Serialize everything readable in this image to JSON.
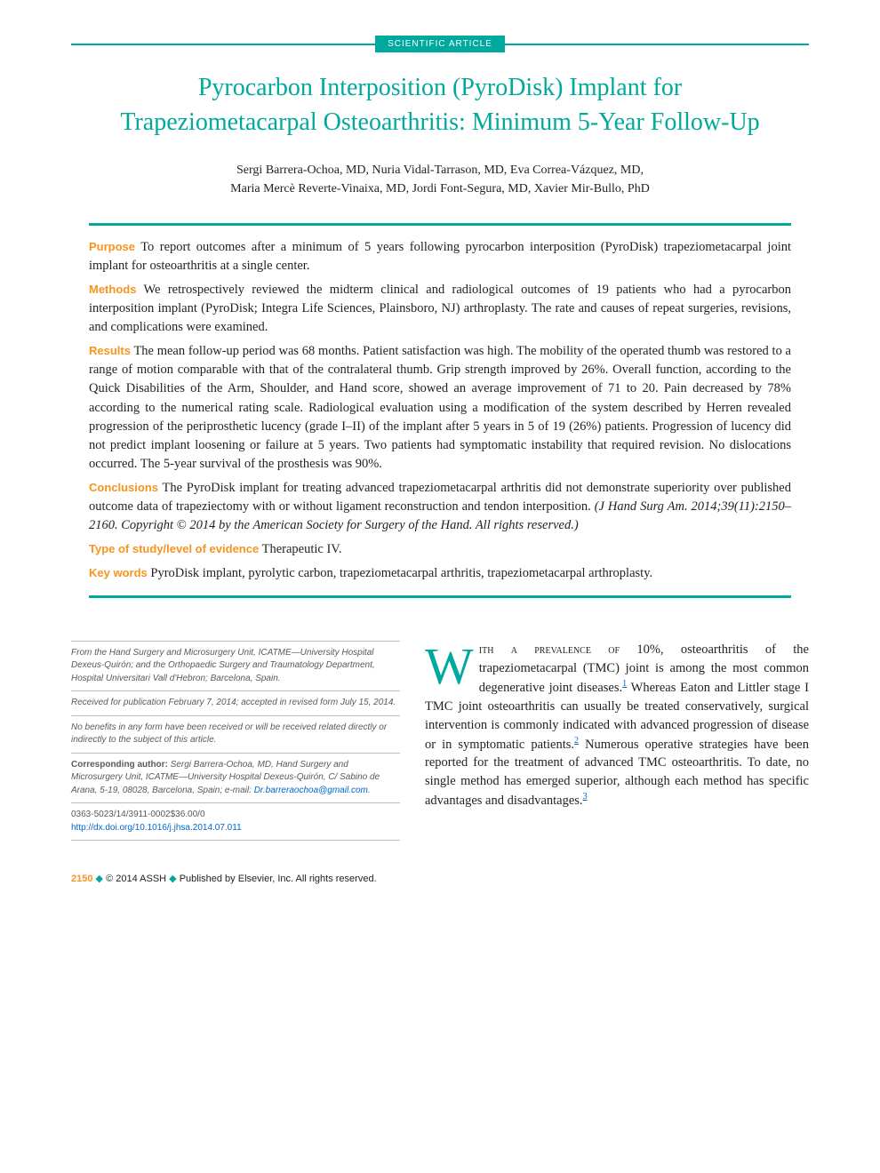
{
  "header": {
    "badge": "SCIENTIFIC ARTICLE",
    "rule_color": "#00a99d"
  },
  "title": "Pyrocarbon Interposition (PyroDisk) Implant for Trapeziometacarpal Osteoarthritis: Minimum 5-Year Follow-Up",
  "authors_line1": "Sergi Barrera-Ochoa, MD, Nuria Vidal-Tarrason, MD, Eva Correa-Vázquez, MD,",
  "authors_line2": "Maria Mercè Reverte-Vinaixa, MD, Jordi Font-Segura, MD, Xavier Mir-Bullo, PhD",
  "abstract": {
    "purpose": {
      "label": "Purpose",
      "text": "To report outcomes after a minimum of 5 years following pyrocarbon interposition (PyroDisk) trapeziometacarpal joint implant for osteoarthritis at a single center."
    },
    "methods": {
      "label": "Methods",
      "text": "We retrospectively reviewed the midterm clinical and radiological outcomes of 19 patients who had a pyrocarbon interposition implant (PyroDisk; Integra Life Sciences, Plainsboro, NJ) arthroplasty. The rate and causes of repeat surgeries, revisions, and complications were examined."
    },
    "results": {
      "label": "Results",
      "text": "The mean follow-up period was 68 months. Patient satisfaction was high. The mobility of the operated thumb was restored to a range of motion comparable with that of the contralateral thumb. Grip strength improved by 26%. Overall function, according to the Quick Disabilities of the Arm, Shoulder, and Hand score, showed an average improvement of 71 to 20. Pain decreased by 78% according to the numerical rating scale. Radiological evaluation using a modification of the system described by Herren revealed progression of the periprosthetic lucency (grade I–II) of the implant after 5 years in 5 of 19 (26%) patients. Progression of lucency did not predict implant loosening or failure at 5 years. Two patients had symptomatic instability that required revision. No dislocations occurred. The 5-year survival of the prosthesis was 90%."
    },
    "conclusions": {
      "label": "Conclusions",
      "text_part1": "The PyroDisk implant for treating advanced trapeziometacarpal arthritis did not demonstrate superiority over published outcome data of trapeziectomy with or without ligament reconstruction and tendon interposition. ",
      "citation": "(J Hand Surg Am. 2014;39(11):2150–2160. Copyright © 2014 by the American Society for Surgery of the Hand. All rights reserved.)"
    },
    "evidence": {
      "label": "Type of study/level of evidence",
      "text": "Therapeutic IV."
    },
    "keywords": {
      "label": "Key words",
      "text": "PyroDisk implant, pyrolytic carbon, trapeziometacarpal arthritis, trapeziometacarpal arthroplasty."
    }
  },
  "affiliations": {
    "from": "From the Hand Surgery and Microsurgery Unit, ICATME—University Hospital Dexeus-Quirón; and the Orthopaedic Surgery and Traumatology Department, Hospital Universitari Vall d'Hebron; Barcelona, Spain.",
    "received": "Received for publication February 7, 2014; accepted in revised form July 15, 2014.",
    "benefits": "No benefits in any form have been received or will be received related directly or indirectly to the subject of this article.",
    "corresponding_label": "Corresponding author:",
    "corresponding_text": " Sergi Barrera-Ochoa, MD, Hand Surgery and Microsurgery Unit, ICATME—University Hospital Dexeus-Quirón, C/ Sabino de Arana, 5-19, 08028, Barcelona, Spain; e-mail: ",
    "corresponding_email": "Dr.barreraochoa@gmail.com",
    "copyright_code": "0363-5023/14/3911-0002$36.00/0",
    "doi": "http://dx.doi.org/10.1016/j.jhsa.2014.07.011"
  },
  "body": {
    "dropcap": "W",
    "first_smallcaps": "ith a prevalence of",
    "first_continue": " 10%, osteoarthritis of the trapeziometacarpal (TMC) joint is among the most common degenerative joint diseases.",
    "ref1": "1",
    "sentence2": " Whereas Eaton and Littler stage I TMC joint osteoarthritis can usually be treated conservatively, surgical intervention is commonly indicated with advanced progression of disease or in symptomatic patients.",
    "ref2": "2",
    "sentence3": " Numerous operative strategies have been reported for the treatment of advanced TMC osteoarthritis. To date, no single method has emerged superior, although each method has specific advantages and disadvantages.",
    "ref3": "3"
  },
  "footer": {
    "pagenum": "2150",
    "text": "© 2014 ASSH",
    "text2": "Published by Elsevier, Inc. All rights reserved."
  },
  "colors": {
    "teal": "#00a99d",
    "orange": "#f7941d",
    "link": "#0066cc",
    "text": "#231f20",
    "grey": "#58595b",
    "rule_grey": "#bcbec0"
  },
  "typography": {
    "title_fontsize": 28,
    "body_fontsize": 14.5,
    "abstract_label_fontsize": 13,
    "affil_fontsize": 10,
    "footer_fontsize": 11,
    "dropcap_fontsize": 58
  }
}
